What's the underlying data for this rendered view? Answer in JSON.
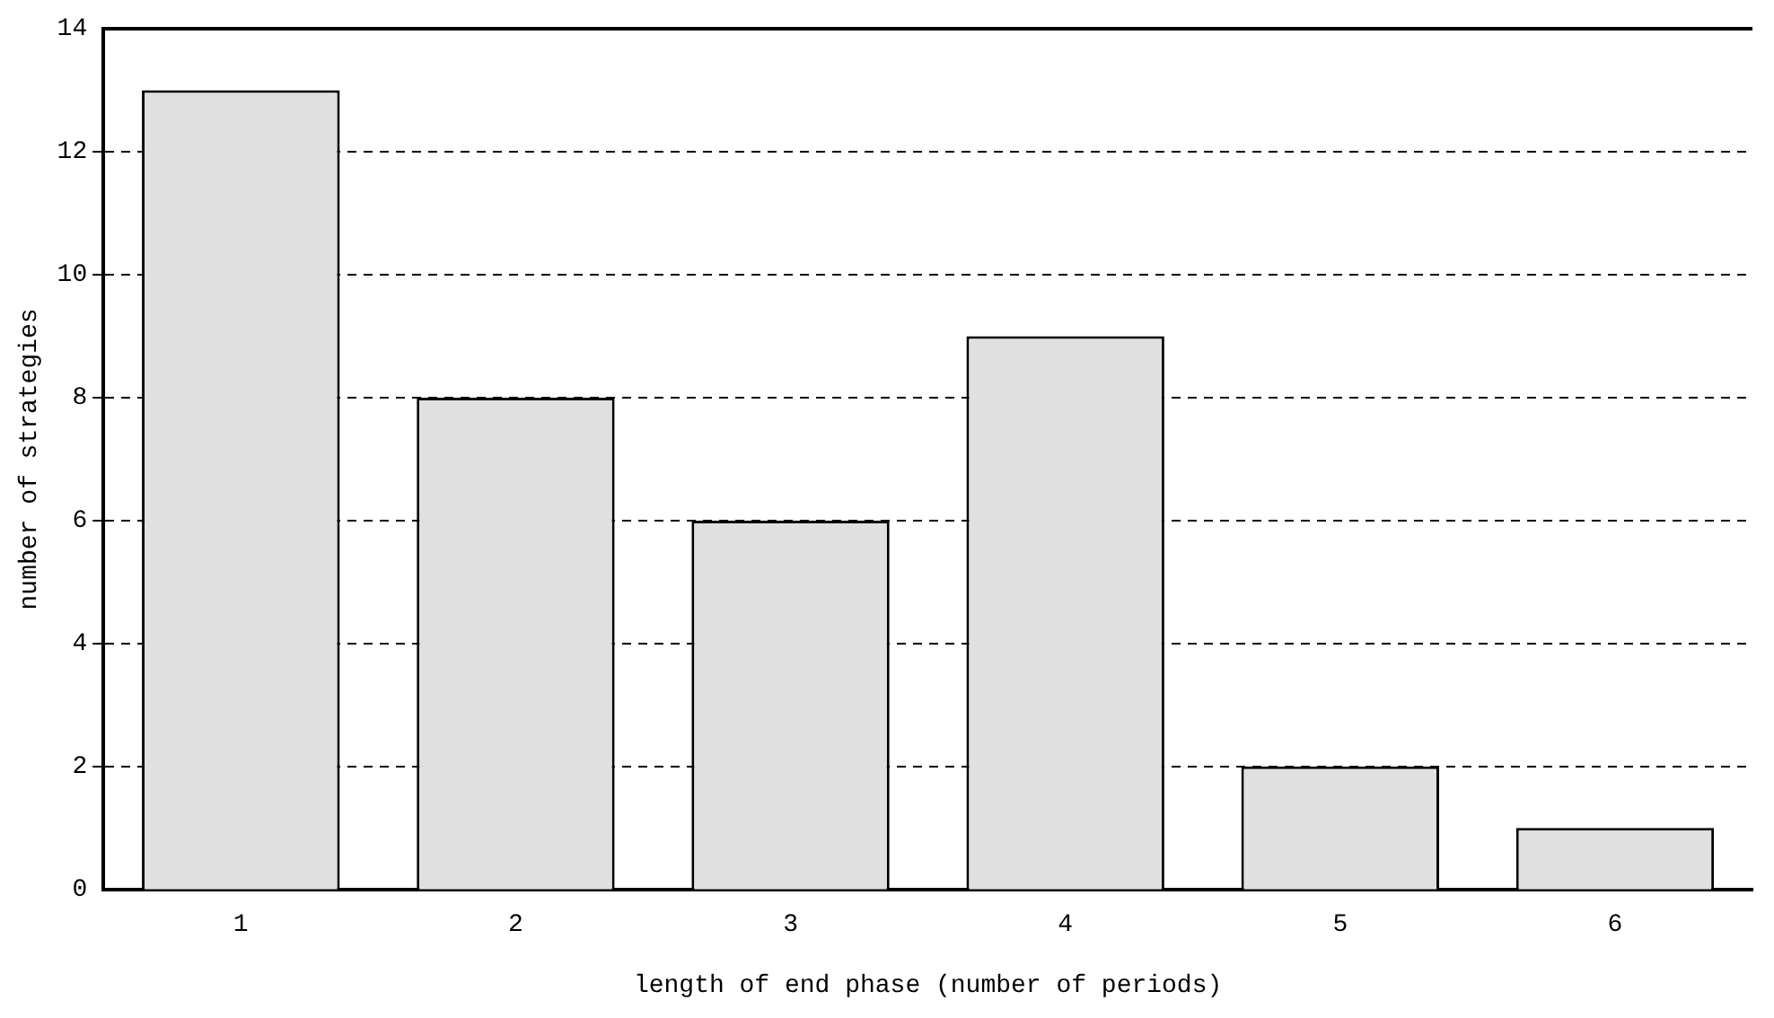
{
  "chart_data": {
    "type": "bar",
    "xlabel": "length of end phase (number of periods)",
    "ylabel": "number of strategies",
    "categories": [
      "1",
      "2",
      "3",
      "4",
      "5",
      "6"
    ],
    "values": [
      13,
      8,
      6,
      9,
      2,
      1
    ],
    "color": "#e0e0e0",
    "ylim": [
      0,
      14
    ],
    "yticks": [
      0,
      2,
      4,
      6,
      8,
      10,
      12,
      14
    ],
    "grid": "y",
    "legend": false
  }
}
